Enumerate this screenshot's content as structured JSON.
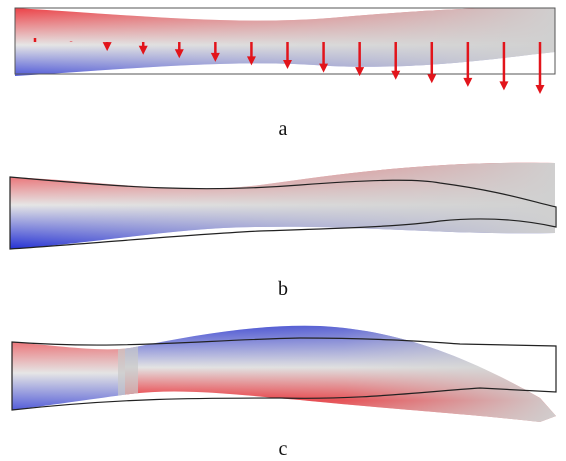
{
  "panels": [
    {
      "label": "a"
    },
    {
      "label": "b"
    },
    {
      "label": "c"
    }
  ],
  "colors": {
    "compression": "#e8101a",
    "tension": "#0a16d0",
    "neutral": "#d0d0d0",
    "force_arrow": "#e2141b",
    "outline": "#222222"
  }
}
